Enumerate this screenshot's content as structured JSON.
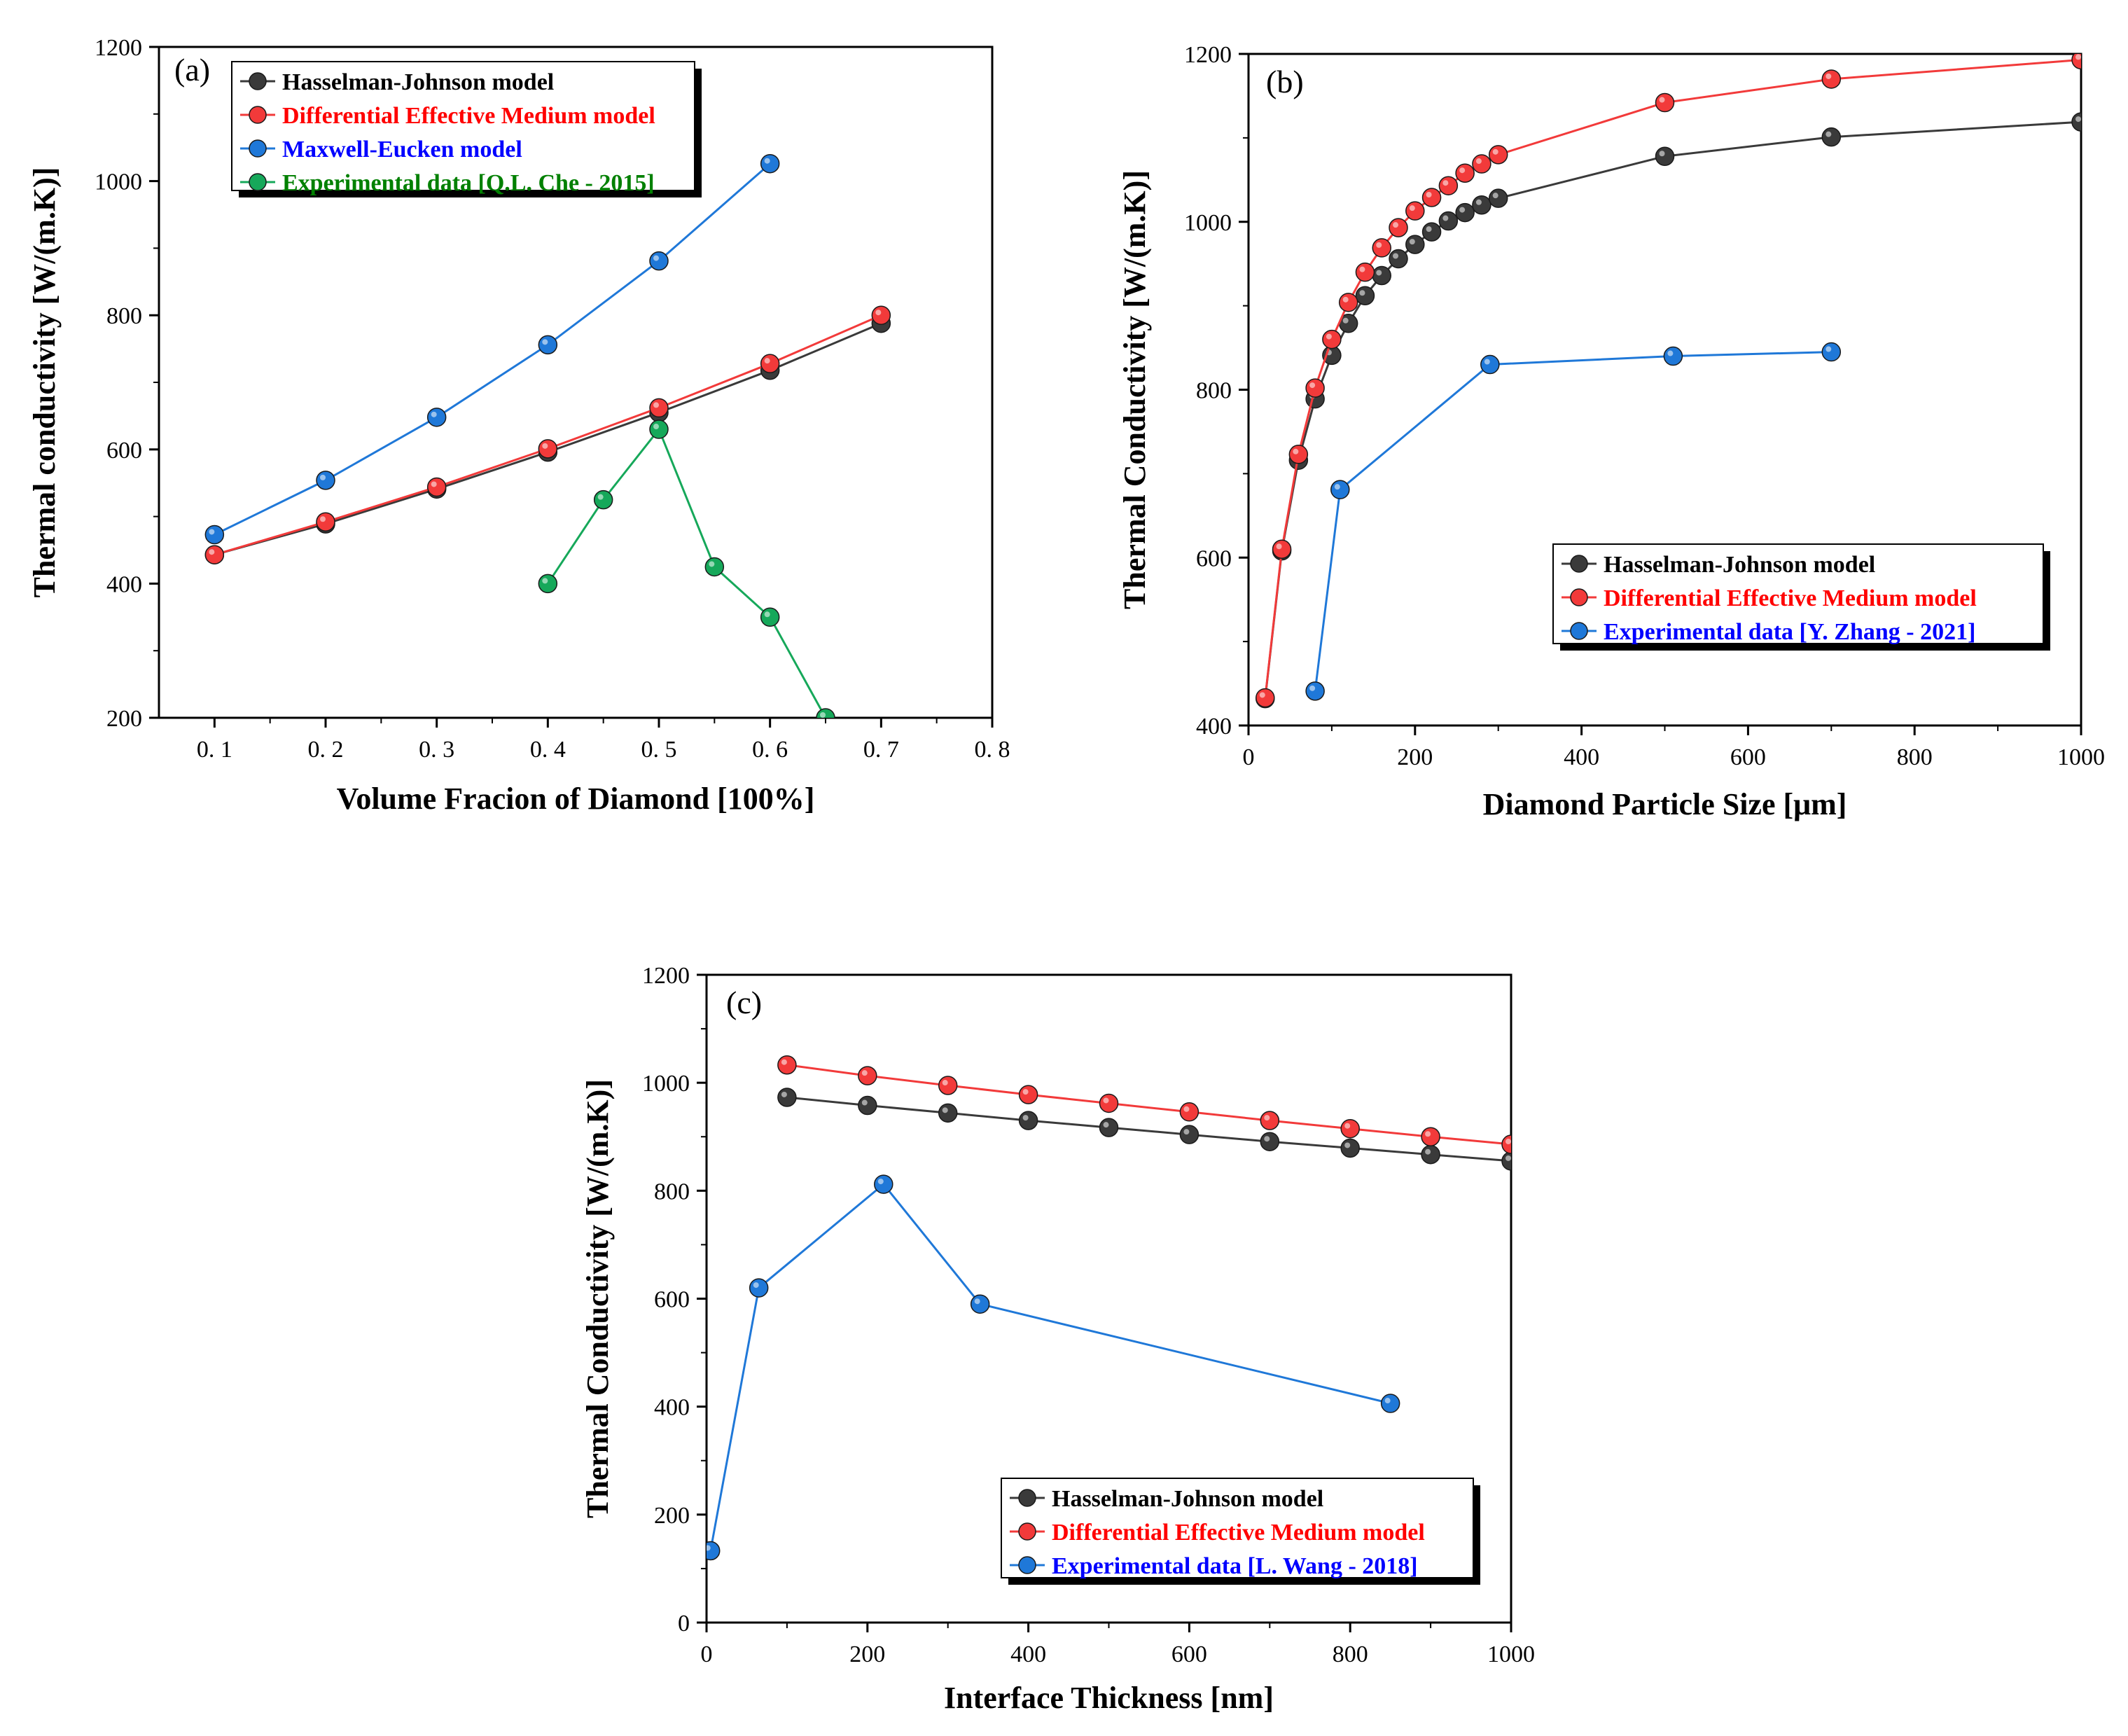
{
  "colors": {
    "black_series": "#3a3a3a",
    "red_series": "#f23a3a",
    "blue_series": "#1f78d8",
    "green_series": "#16a85a",
    "legend_black_text": "#000000",
    "legend_red_text": "#ff0000",
    "legend_blue_text": "#0000ff",
    "legend_green_text": "#008000"
  },
  "chart_data": [
    {
      "type": "line",
      "panel_label": "(a)",
      "xlabel": "Volume Fracion of Diamond [100%]",
      "ylabel": "Thermal conductivity [W/(m.K)]",
      "xlim": [
        0.05,
        0.8
      ],
      "ylim": [
        200,
        1200
      ],
      "xticks": [
        0.1,
        0.2,
        0.3,
        0.4,
        0.5,
        0.6,
        0.7,
        0.8
      ],
      "xtick_labels": [
        "0. 1",
        "0. 2",
        "0. 3",
        "0. 4",
        "0. 5",
        "0. 6",
        "0. 7",
        "0. 8"
      ],
      "yticks": [
        200,
        400,
        600,
        800,
        1000,
        1200
      ],
      "ytick_labels": [
        "200",
        "400",
        "600",
        "800",
        "1000",
        "1200"
      ],
      "legend_position": "top-left",
      "series": [
        {
          "name": "Hasselman-Johnson model",
          "color_key": "black_series",
          "text_color_key": "legend_black_text",
          "x": [
            0.1,
            0.2,
            0.3,
            0.4,
            0.5,
            0.6,
            0.7
          ],
          "y": [
            443,
            489,
            541,
            596,
            655,
            718,
            788
          ]
        },
        {
          "name": "Differential Effective Medium model",
          "color_key": "red_series",
          "text_color_key": "legend_red_text",
          "x": [
            0.1,
            0.2,
            0.3,
            0.4,
            0.5,
            0.6,
            0.7
          ],
          "y": [
            443,
            492,
            544,
            601,
            662,
            728,
            800
          ]
        },
        {
          "name": "Maxwell-Eucken model",
          "color_key": "blue_series",
          "text_color_key": "legend_blue_text",
          "x": [
            0.1,
            0.2,
            0.3,
            0.4,
            0.5,
            0.6
          ],
          "y": [
            473,
            554,
            648,
            756,
            881,
            1026
          ]
        },
        {
          "name": "Experimental data [Q.L. Che - 2015]",
          "color_key": "green_series",
          "text_color_key": "legend_green_text",
          "x": [
            0.4,
            0.45,
            0.5,
            0.55,
            0.6,
            0.65
          ],
          "y": [
            400,
            525,
            630,
            425,
            350,
            200
          ]
        }
      ]
    },
    {
      "type": "line",
      "panel_label": "(b)",
      "xlabel": "Diamond Particle Size [μm]",
      "ylabel": "Thermal Conductivity [W/(m.K)]",
      "xlim": [
        0,
        1000
      ],
      "ylim": [
        400,
        1200
      ],
      "xticks": [
        0,
        200,
        400,
        600,
        800,
        1000
      ],
      "xtick_labels": [
        "0",
        "200",
        "400",
        "600",
        "800",
        "1000"
      ],
      "yticks": [
        400,
        600,
        800,
        1000,
        1200
      ],
      "ytick_labels": [
        "400",
        "600",
        "800",
        "1000",
        "1200"
      ],
      "legend_position": "center-right",
      "series": [
        {
          "name": "Hasselman-Johnson model",
          "color_key": "black_series",
          "text_color_key": "legend_black_text",
          "x": [
            20,
            40,
            60,
            80,
            100,
            120,
            140,
            160,
            180,
            200,
            220,
            240,
            260,
            280,
            300,
            500,
            700,
            1000
          ],
          "y": [
            432,
            608,
            716,
            789,
            841,
            879,
            912,
            936,
            956,
            973,
            988,
            1001,
            1011,
            1020,
            1028,
            1078,
            1101,
            1119
          ]
        },
        {
          "name": "Differential Effective Medium model",
          "color_key": "red_series",
          "text_color_key": "legend_red_text",
          "x": [
            20,
            40,
            60,
            80,
            100,
            120,
            140,
            160,
            180,
            200,
            220,
            240,
            260,
            280,
            300,
            500,
            700,
            1000
          ],
          "y": [
            433,
            610,
            723,
            802,
            860,
            904,
            940,
            969,
            993,
            1013,
            1029,
            1043,
            1058,
            1069,
            1080,
            1142,
            1170,
            1193
          ]
        },
        {
          "name": "Experimental data [Y. Zhang - 2021]",
          "color_key": "blue_series",
          "text_color_key": "legend_blue_text",
          "x": [
            80,
            110,
            290,
            510,
            700
          ],
          "y": [
            441,
            681,
            830,
            840,
            845
          ]
        }
      ]
    },
    {
      "type": "line",
      "panel_label": "(c)",
      "xlabel": "Interface Thickness [nm]",
      "ylabel": "Thermal Conductivity [W/(m.K)]",
      "xlim": [
        0,
        1000
      ],
      "ylim": [
        0,
        1200
      ],
      "xticks": [
        0,
        200,
        400,
        600,
        800,
        1000
      ],
      "xtick_labels": [
        "0",
        "200",
        "400",
        "600",
        "800",
        "1000"
      ],
      "yticks": [
        0,
        200,
        400,
        600,
        800,
        1000,
        1200
      ],
      "ytick_labels": [
        "0",
        "200",
        "400",
        "600",
        "800",
        "1000",
        "1200"
      ],
      "legend_position": "bottom-right",
      "series": [
        {
          "name": "Hasselman-Johnson model",
          "color_key": "black_series",
          "text_color_key": "legend_black_text",
          "x": [
            100,
            200,
            300,
            400,
            500,
            600,
            700,
            800,
            900,
            1000
          ],
          "y": [
            973,
            958,
            944,
            930,
            917,
            904,
            891,
            879,
            867,
            855
          ]
        },
        {
          "name": "Differential Effective Medium model",
          "color_key": "red_series",
          "text_color_key": "legend_red_text",
          "x": [
            100,
            200,
            300,
            400,
            500,
            600,
            700,
            800,
            900,
            1000
          ],
          "y": [
            1033,
            1013,
            995,
            978,
            962,
            946,
            930,
            915,
            900,
            886
          ]
        },
        {
          "name": "Experimental data [L. Wang - 2018]",
          "color_key": "blue_series",
          "text_color_key": "legend_blue_text",
          "x": [
            5,
            65,
            220,
            340,
            850
          ],
          "y": [
            133,
            620,
            812,
            590,
            406
          ]
        }
      ]
    }
  ]
}
